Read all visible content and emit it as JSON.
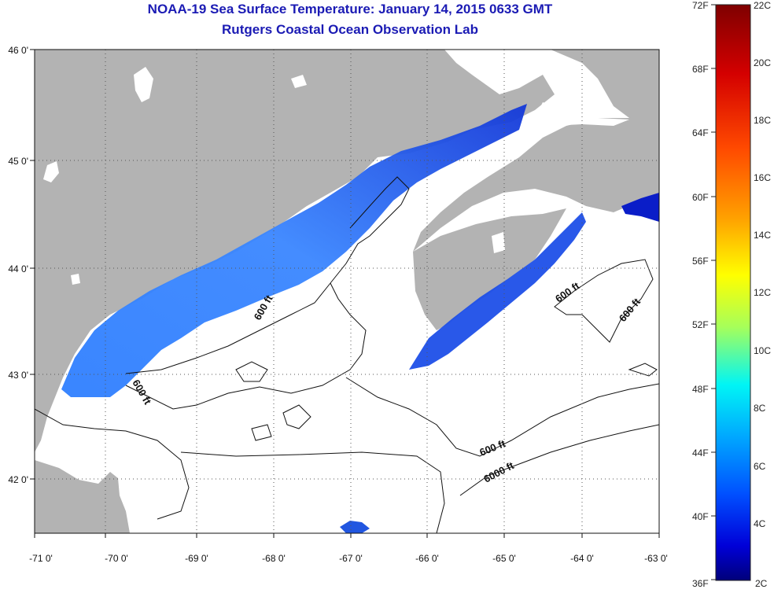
{
  "header": {
    "title": "NOAA-19 Sea Surface Temperature:  January 14, 2015 0633 GMT",
    "subtitle": "Rutgers Coastal Ocean Observation Lab"
  },
  "map": {
    "lon_ticks": [
      "-71 0'",
      "-70 0'",
      "-69 0'",
      "-68 0'",
      "-67 0'",
      "-66 0'",
      "-65 0'",
      "-64 0'",
      "-63 0'"
    ],
    "lat_ticks": [
      "46 0'",
      "45 0'",
      "44 0'",
      "43 0'",
      "42 0'"
    ],
    "contour_labels": [
      "600 ft",
      "600 ft",
      "600 ft",
      "600 ft",
      "600 ft",
      "6000 ft"
    ],
    "colors": {
      "land": "#b3b3b3",
      "water": "#ffffff",
      "grid": "#555555"
    }
  },
  "colorbar": {
    "fahrenheit": [
      "72F",
      "68F",
      "64F",
      "60F",
      "56F",
      "52F",
      "48F",
      "44F",
      "40F",
      "36F"
    ],
    "celsius": [
      "22C",
      "20C",
      "18C",
      "16C",
      "14C",
      "12C",
      "10C",
      "8C",
      "6C",
      "4C",
      "2C"
    ]
  }
}
